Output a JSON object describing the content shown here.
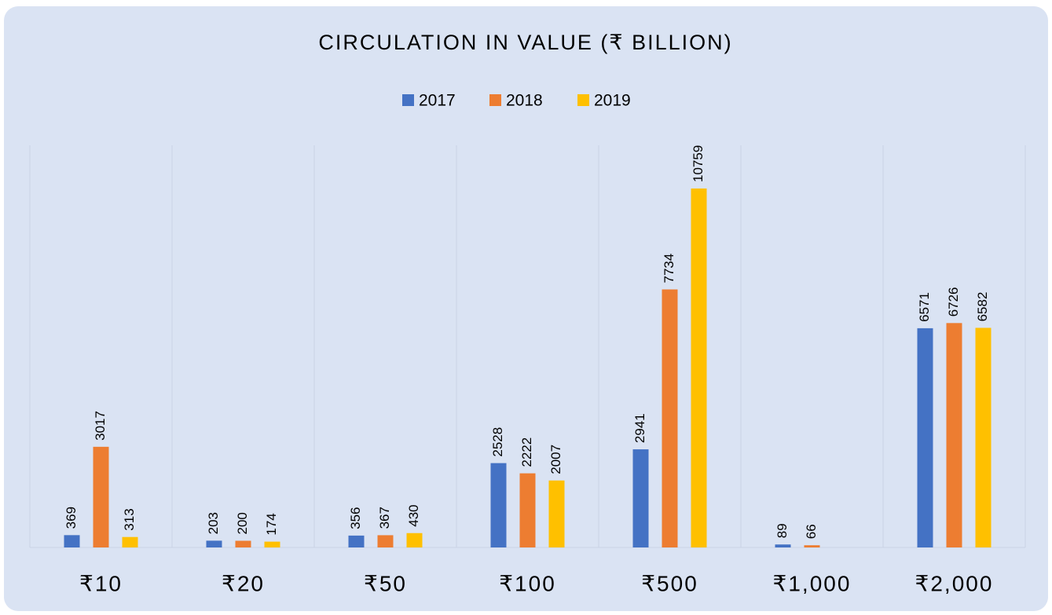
{
  "chart_data": {
    "type": "bar",
    "title": "CIRCULATION IN VALUE (₹ BILLION)",
    "categories": [
      "₹10",
      "₹20",
      "₹50",
      "₹100",
      "₹500",
      "₹1,000",
      "₹2,000"
    ],
    "series": [
      {
        "name": "2017",
        "color": "#4472c4",
        "values": [
          369,
          203,
          356,
          2528,
          2941,
          89,
          6571
        ]
      },
      {
        "name": "2018",
        "color": "#ed7d31",
        "values": [
          3017,
          200,
          367,
          2222,
          7734,
          66,
          6726
        ]
      },
      {
        "name": "2019",
        "color": "#ffc000",
        "values": [
          313,
          174,
          430,
          2007,
          10759,
          null,
          6582
        ]
      }
    ],
    "legend": "top"
  }
}
